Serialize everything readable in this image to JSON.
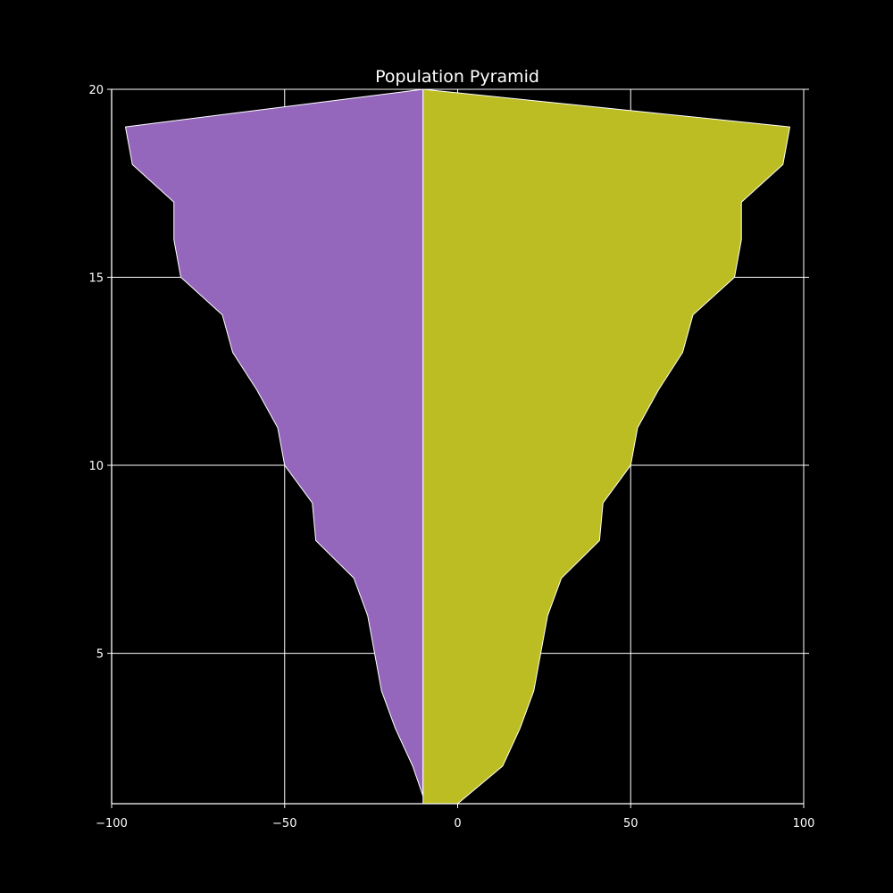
{
  "chart_data": {
    "type": "area",
    "title": "Population Pyramid",
    "xlabel": "",
    "ylabel": "",
    "xlim": [
      -100,
      100
    ],
    "ylim": [
      1,
      20
    ],
    "grid": true,
    "background": "#000000",
    "axis_color": "#ffffff",
    "x_ticks": [
      -100,
      -50,
      0,
      50,
      100
    ],
    "x_tick_labels": [
      "−100",
      "−50",
      "0",
      "50",
      "100"
    ],
    "y_ticks": [
      5,
      10,
      15,
      20
    ],
    "y_tick_labels": [
      "5",
      "10",
      "15",
      "20"
    ],
    "series": [
      {
        "color": "#9467bd",
        "baseline": -10,
        "points": [
          [
            -10,
            1.2
          ],
          [
            -13,
            2
          ],
          [
            -18,
            3
          ],
          [
            -22,
            4
          ],
          [
            -24,
            5
          ],
          [
            -26,
            6
          ],
          [
            -30,
            7
          ],
          [
            -41,
            8
          ],
          [
            -42,
            9
          ],
          [
            -50,
            10
          ],
          [
            -52,
            11
          ],
          [
            -58,
            12
          ],
          [
            -65,
            13
          ],
          [
            -68,
            14
          ],
          [
            -80,
            15
          ],
          [
            -82,
            16
          ],
          [
            -82,
            17
          ],
          [
            -94,
            18
          ],
          [
            -96,
            19
          ],
          [
            -10,
            20
          ]
        ]
      },
      {
        "color": "#bcbd22",
        "baseline": -10,
        "points": [
          [
            -10,
            1
          ],
          [
            0,
            1
          ],
          [
            13,
            2
          ],
          [
            18,
            3
          ],
          [
            22,
            4
          ],
          [
            24,
            5
          ],
          [
            26,
            6
          ],
          [
            30,
            7
          ],
          [
            41,
            8
          ],
          [
            42,
            9
          ],
          [
            50,
            10
          ],
          [
            52,
            11
          ],
          [
            58,
            12
          ],
          [
            65,
            13
          ],
          [
            68,
            14
          ],
          [
            80,
            15
          ],
          [
            82,
            16
          ],
          [
            82,
            17
          ],
          [
            94,
            18
          ],
          [
            96,
            19
          ],
          [
            -10,
            20
          ]
        ]
      }
    ]
  }
}
